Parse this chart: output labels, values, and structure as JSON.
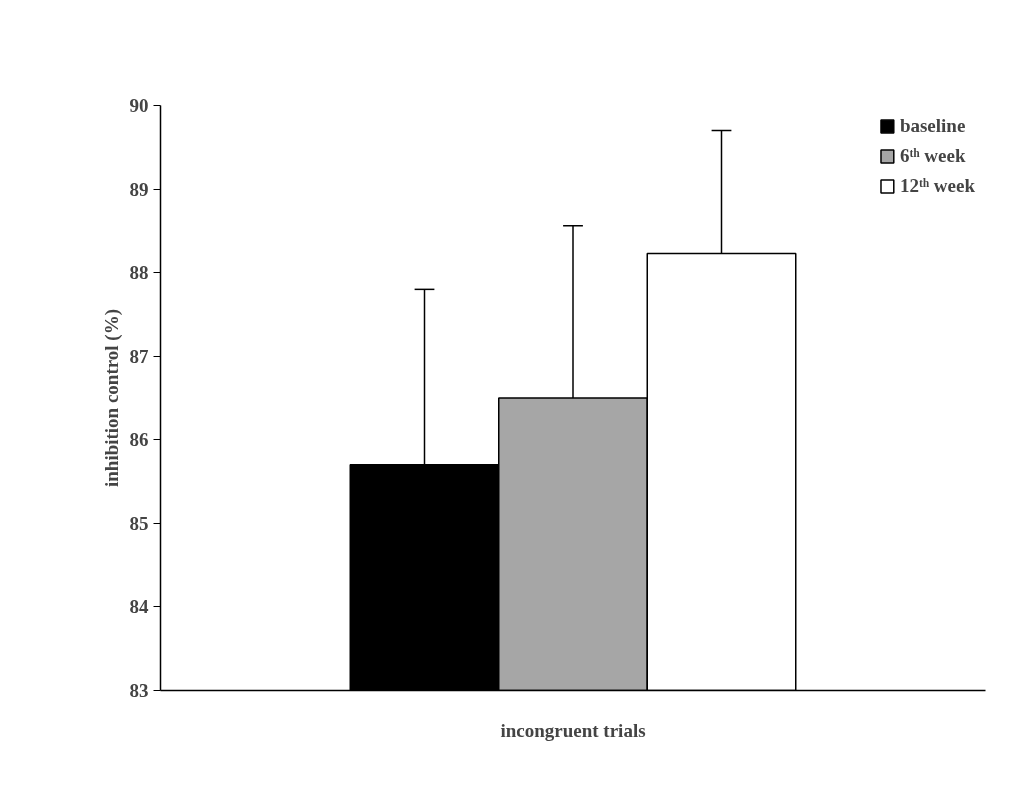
{
  "chart_data": {
    "type": "bar",
    "ylabel": "inhibition control (%)",
    "categories": [
      "incongruent trials"
    ],
    "series": [
      {
        "name": "baseline",
        "color": "#000000",
        "values": [
          85.7
        ],
        "errors": [
          [
            85.7,
            87.8
          ]
        ]
      },
      {
        "name": "6ᵗʰ week",
        "color": "#a6a6a6",
        "values": [
          86.5
        ],
        "errors": [
          [
            86.5,
            88.56
          ]
        ]
      },
      {
        "name": "12ᵗʰ week",
        "color": "#ffffff",
        "values": [
          88.23
        ],
        "errors": [
          [
            88.23,
            89.7
          ]
        ]
      }
    ],
    "ylim": [
      83,
      90
    ],
    "yticks": [
      83,
      84,
      85,
      86,
      87,
      88,
      89,
      90
    ],
    "grid": false,
    "legend": "top right"
  }
}
